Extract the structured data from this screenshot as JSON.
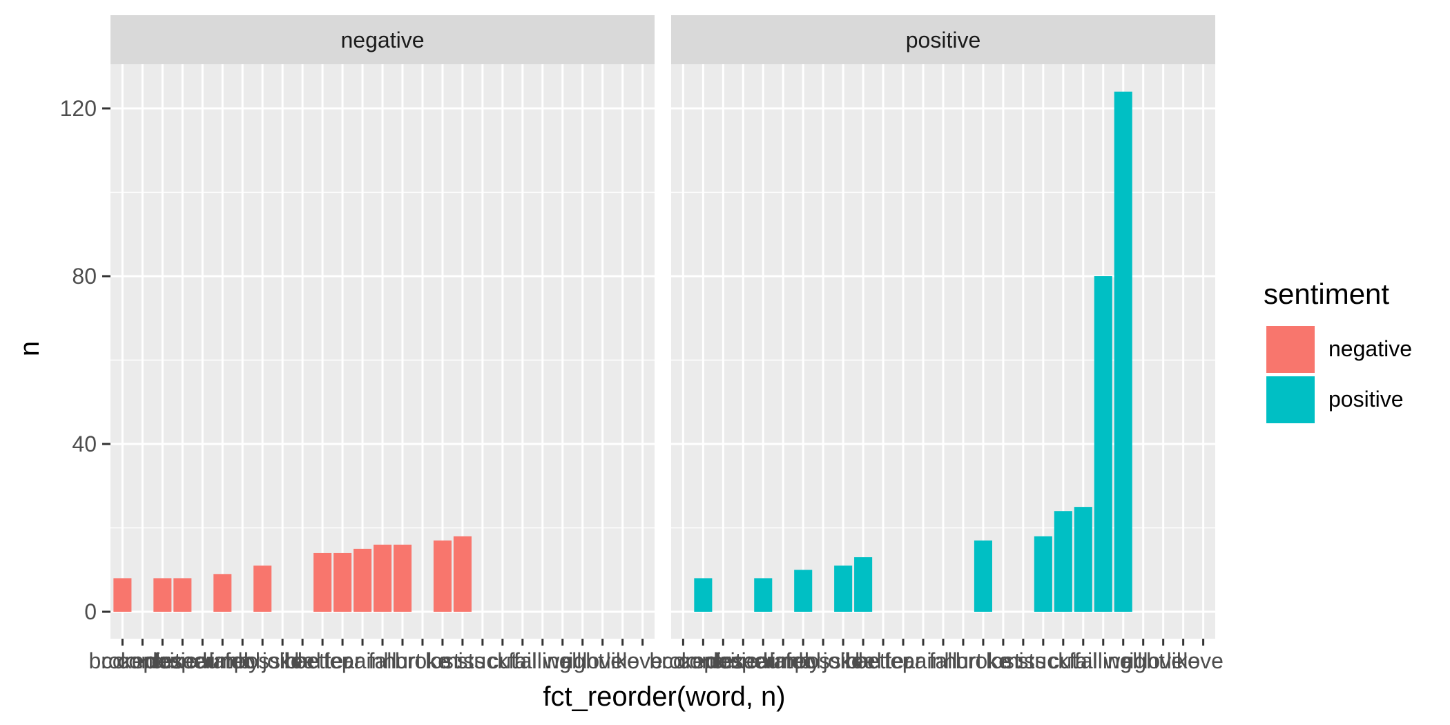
{
  "chart_data": {
    "type": "bar",
    "facet_variable": "sentiment",
    "panels": [
      "negative",
      "positive"
    ],
    "xlabel": "fct_reorder(word, n)",
    "ylabel": "n",
    "ylim": [
      -8,
      140
    ],
    "y_breaks": [
      0,
      40,
      80,
      120
    ],
    "grid": true,
    "legend_position": "right",
    "legend": {
      "title": "sentiment",
      "entries": [
        {
          "label": "negative",
          "color": "#F8766D"
        },
        {
          "label": "positive",
          "color": "#00BFC4"
        }
      ]
    },
    "categories": [
      "broken",
      "complex",
      "confused",
      "critical",
      "desperately",
      "dumb",
      "fool",
      "impossible",
      "joke",
      "bad",
      "better",
      "fear",
      "pain",
      "fall",
      "hurt",
      "broke",
      "lost",
      "miss",
      "stuck",
      "cut",
      "fail",
      "falling",
      "well",
      "right",
      "love",
      "like",
      "love"
    ],
    "series": [
      {
        "name": "negative",
        "color": "#F8766D",
        "values": [
          8,
          null,
          8,
          8,
          null,
          9,
          null,
          11,
          null,
          null,
          14,
          14,
          15,
          16,
          16,
          null,
          17,
          18,
          null,
          null,
          null,
          null,
          null,
          null,
          null,
          null,
          null
        ]
      },
      {
        "name": "positive",
        "color": "#00BFC4",
        "values": [
          null,
          8,
          null,
          null,
          8,
          null,
          10,
          null,
          11,
          13,
          null,
          null,
          null,
          null,
          null,
          17,
          null,
          null,
          18,
          24,
          25,
          80,
          124,
          null,
          null,
          null,
          null
        ]
      }
    ]
  }
}
